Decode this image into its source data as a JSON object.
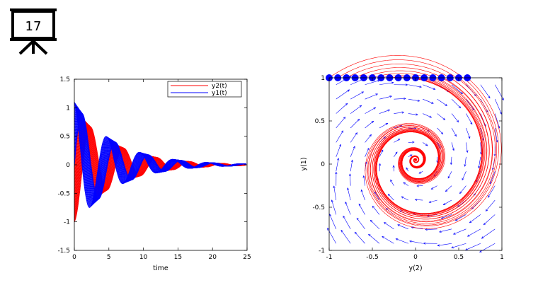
{
  "slide": {
    "number": "17",
    "icon": "presentation-easel-icon"
  },
  "chart_data": [
    {
      "type": "line",
      "xlabel": "time",
      "ylabel": "",
      "xlim": [
        0,
        25
      ],
      "ylim": [
        -1.5,
        1.5
      ],
      "x_ticks": [
        "0",
        "5",
        "10",
        "15",
        "20",
        "25"
      ],
      "y_ticks": [
        "1.5",
        "1",
        "0.5",
        "0",
        "-0.5",
        "-1",
        "-1.5"
      ],
      "grid": false,
      "legend_position": "top-right",
      "series": [
        {
          "name": "y2(t)",
          "color": "#ff0000",
          "description_values": {
            "initial_range": [
              -1,
              1
            ],
            "period": 4.8,
            "decay_rate": 0.17,
            "final_amplitude": 0.02
          }
        },
        {
          "name": "y1(t)",
          "color": "#0000ff",
          "description_values": {
            "initial_range": [
              -1,
              1.2
            ],
            "period": 4.8,
            "decay_rate": 0.17,
            "final_amplitude": 0.02
          }
        }
      ],
      "ensemble_curves": 30
    },
    {
      "type": "scatter",
      "xlabel": "y(2)",
      "ylabel": "y(1)",
      "xlim": [
        -1,
        1
      ],
      "ylim": [
        -1,
        1
      ],
      "x_ticks": [
        "-1",
        "-0.5",
        "0",
        "0.5",
        "1"
      ],
      "y_ticks": [
        "1",
        "0.5",
        "0",
        "-0.5",
        "-1"
      ],
      "grid": false,
      "initial_points": {
        "color": "#0000ff",
        "x": [
          -1.0,
          -0.9,
          -0.8,
          -0.7,
          -0.6,
          -0.5,
          -0.4,
          -0.3,
          -0.2,
          -0.1,
          0.0,
          0.1,
          0.2,
          0.3,
          0.4,
          0.5,
          0.6
        ],
        "y": [
          1,
          1,
          1,
          1,
          1,
          1,
          1,
          1,
          1,
          1,
          1,
          1,
          1,
          1,
          1,
          1,
          1
        ]
      },
      "trajectories_color": "#ff0000",
      "vector_field_color": "#0000ff",
      "spiral_center": [
        0,
        0.05
      ]
    }
  ]
}
